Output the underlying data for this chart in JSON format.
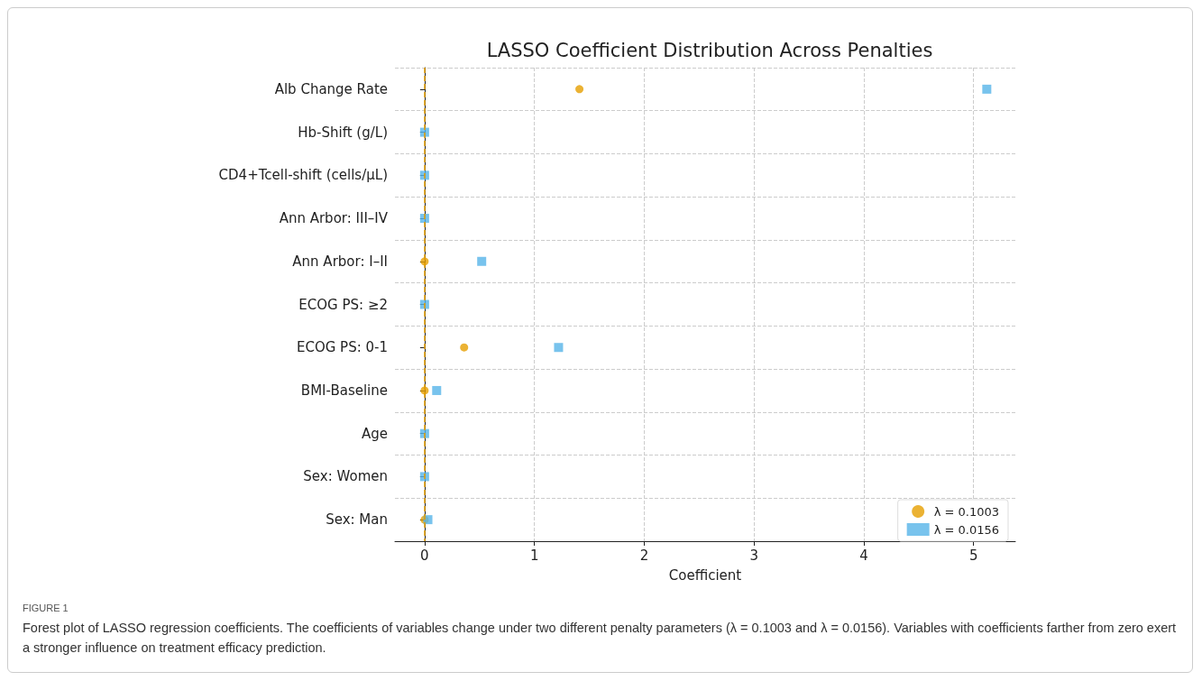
{
  "chart_data": {
    "type": "scatter",
    "title": "LASSO Coefficient Distribution Across Penalties",
    "xlabel": "Coefficient",
    "orientation": "horizontal",
    "categories": [
      "Alb Change Rate",
      "Hb-Shift (g/L)",
      "CD4+Tcell-shift (cells/μL)",
      "Ann Arbor: III–IV",
      "Ann Arbor: I–II",
      "ECOG PS: ≥2",
      "ECOG PS: 0-1",
      "BMI-Baseline",
      "Age",
      "Sex: Women",
      "Sex: Man"
    ],
    "series": [
      {
        "name": "λ = 0.1003",
        "color": "#e69f00",
        "marker": "circle",
        "values": [
          1.41,
          null,
          null,
          null,
          0,
          null,
          0.36,
          0,
          null,
          null,
          0
        ]
      },
      {
        "name": "λ = 0.0156",
        "color": "#56b4e9",
        "marker": "square",
        "values": [
          5.12,
          0,
          0,
          0,
          0.52,
          0,
          1.22,
          0.11,
          0,
          0,
          0.03
        ]
      }
    ],
    "xlim": [
      -0.27,
      5.38
    ],
    "xticks": [
      0,
      1,
      2,
      3,
      4,
      5
    ],
    "ref_lines": [
      {
        "axis": "x",
        "value": 0,
        "color": "#e69f00",
        "line_style": "dashed"
      }
    ],
    "grid": true,
    "legend": "bottom right",
    "annotations": [
      "FIGURE 1",
      "Forest plot of LASSO regression coefficients. The coefficients of variables change under two different penalty parameters (λ = 0.1003 and λ = 0.0156). Variables with coefficients farther from zero exert a stronger influence on treatment efficacy prediction."
    ]
  }
}
